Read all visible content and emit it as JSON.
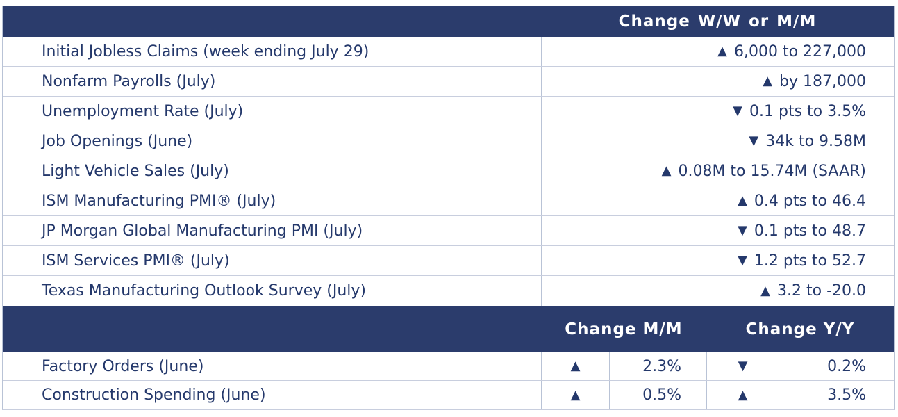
{
  "colors": {
    "header_bg": "#2B3C6C",
    "text": "#24386B",
    "row_divider": "#C8CEDE",
    "column_divider": "#B9C3D6",
    "background": "#FFFFFF"
  },
  "icons": {
    "up_arrow": "▲",
    "down_arrow": "▼"
  },
  "top_section": {
    "header": "Change W/W or M/M",
    "rows": [
      {
        "label": "Initial Jobless Claims (week ending July 29)",
        "direction": "up",
        "arrow": "▲",
        "value": "6,000 to 227,000"
      },
      {
        "label": "Nonfarm Payrolls (July)",
        "direction": "up",
        "arrow": "▲",
        "value": "by 187,000"
      },
      {
        "label": "Unemployment Rate (July)",
        "direction": "down",
        "arrow": "▼",
        "value": "0.1 pts to 3.5%"
      },
      {
        "label": "Job Openings (June)",
        "direction": "down",
        "arrow": "▼",
        "value": "34k to 9.58M"
      },
      {
        "label": "Light Vehicle Sales (July)",
        "direction": "up",
        "arrow": "▲",
        "value": "0.08M to 15.74M (SAAR)"
      },
      {
        "label": "ISM Manufacturing PMI® (July)",
        "direction": "up",
        "arrow": "▲",
        "value": "0.4 pts to 46.4"
      },
      {
        "label": "JP Morgan Global Manufacturing PMI (July)",
        "direction": "down",
        "arrow": "▼",
        "value": "0.1 pts to 48.7"
      },
      {
        "label": "ISM Services PMI® (July)",
        "direction": "down",
        "arrow": "▼",
        "value": "1.2 pts to 52.7"
      },
      {
        "label": "Texas Manufacturing Outlook Survey (July)",
        "direction": "up",
        "arrow": "▲",
        "value": "3.2 to -20.0"
      }
    ]
  },
  "bottom_section": {
    "headers": {
      "mm": "Change M/M",
      "yy": "Change Y/Y"
    },
    "rows": [
      {
        "label": "Factory Orders (June)",
        "mm_direction": "up",
        "mm_arrow": "▲",
        "mm_value": "2.3%",
        "yy_direction": "down",
        "yy_arrow": "▼",
        "yy_value": "0.2%"
      },
      {
        "label": "Construction Spending (June)",
        "mm_direction": "up",
        "mm_arrow": "▲",
        "mm_value": "0.5%",
        "yy_direction": "up",
        "yy_arrow": "▲",
        "yy_value": "3.5%"
      }
    ]
  }
}
